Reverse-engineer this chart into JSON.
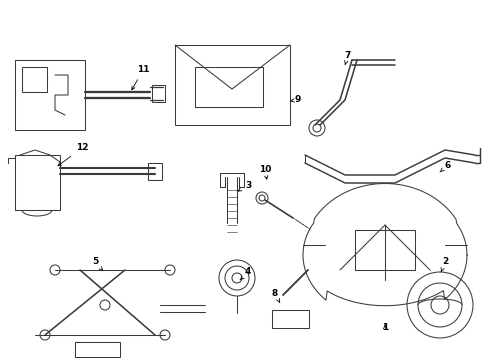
{
  "bg_color": "#ffffff",
  "line_color": "#3a3a3a",
  "figsize": [
    4.9,
    3.6
  ],
  "dpi": 100,
  "lw": 0.75,
  "font_size": 6.5
}
